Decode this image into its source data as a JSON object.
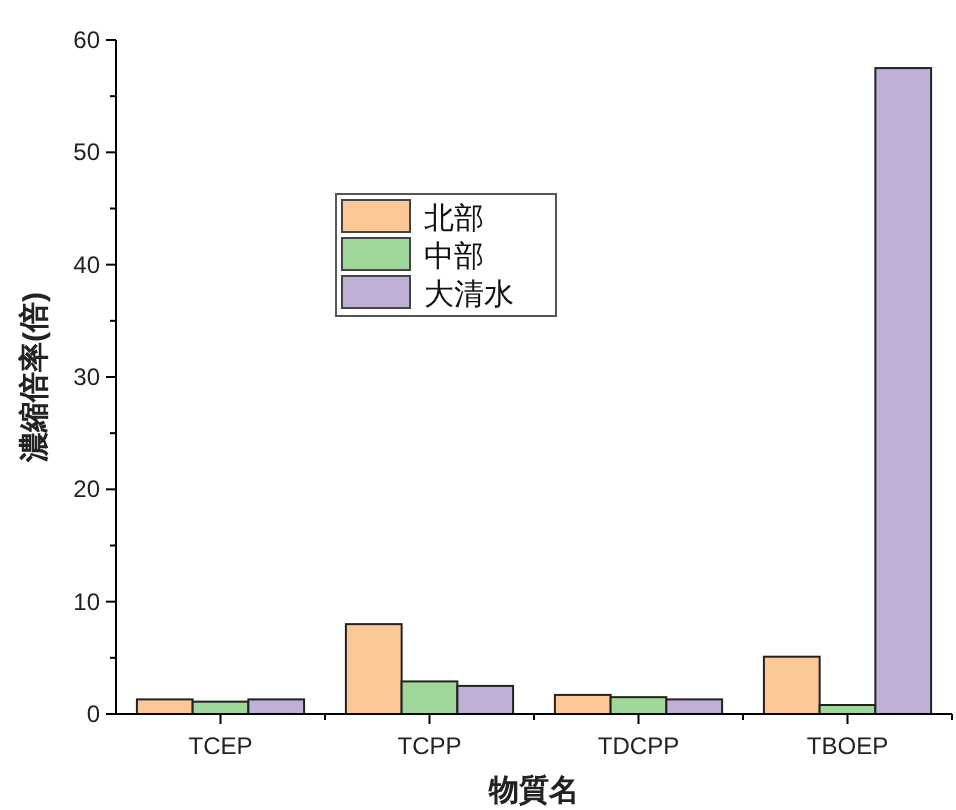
{
  "chart_data": {
    "type": "bar",
    "xlabel": "物質名",
    "ylabel": "濃縮倍率(倍)",
    "categories": [
      "TCEP",
      "TCPP",
      "TDCPP",
      "TBOEP"
    ],
    "series": [
      {
        "name": "北部",
        "color": "#fdc897",
        "values": [
          1.3,
          8.0,
          1.7,
          5.1
        ]
      },
      {
        "name": "中部",
        "color": "#a0d89c",
        "values": [
          1.1,
          2.9,
          1.5,
          0.8
        ]
      },
      {
        "name": "大清水",
        "color": "#c0b0d6",
        "values": [
          1.3,
          2.5,
          1.3,
          57.5
        ]
      }
    ],
    "ylim": [
      0,
      60
    ],
    "yticks": [
      0,
      {
        "value": 5,
        "label": null
      },
      10,
      {
        "value": 15,
        "label": null
      },
      20,
      {
        "value": 25,
        "label": null
      },
      30,
      {
        "value": 35,
        "label": null
      },
      40,
      {
        "value": 45,
        "label": null
      },
      50,
      {
        "value": 55,
        "label": null
      },
      60
    ],
    "legend": "top left"
  }
}
